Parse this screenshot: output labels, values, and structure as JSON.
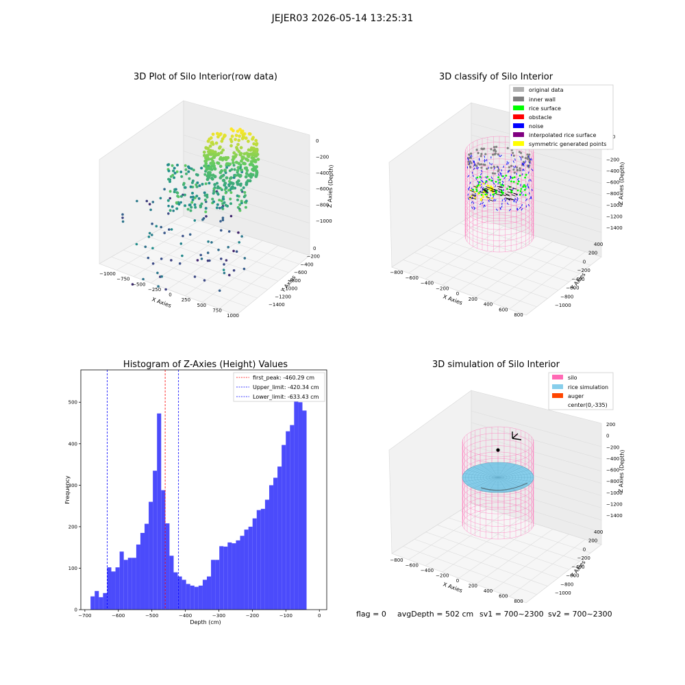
{
  "figure": {
    "suptitle": "JEJER03 2026-05-14 13:25:31",
    "footer": {
      "flag": "flag = 0",
      "avg_depth": "avgDepth = 502 cm",
      "sv1": "sv1 = 700~2300",
      "sv2": "sv2 = 700~2300"
    }
  },
  "colors": {
    "hist_bar": "#4b4bfb",
    "first_peak": "#ff0000",
    "limit_line": "#0000ff",
    "original_data": "#b0b0b0",
    "inner_wall": "#808080",
    "rice_surface": "#00ff00",
    "obstacle": "#ff0000",
    "noise": "#0000ff",
    "interpolated_rice_surface": "#800080",
    "symmetric_generated_points": "#ffff00",
    "silo": "#ff69b4",
    "rice_simulation": "#87ceeb",
    "auger": "#ff4500"
  },
  "chart_data": [
    {
      "type": "scatter",
      "title": "3D Plot of Silo Interior(row data)",
      "xlabel": "X Axies",
      "ylabel": "Y Axies",
      "zlabel": "Z Axies (Depth)",
      "xticks": [
        "−1000",
        "−750",
        "−500",
        "−250",
        "0",
        "250",
        "500",
        "750",
        "1000"
      ],
      "yticks": [
        "0",
        "−200",
        "−400",
        "−600",
        "−800",
        "−1000",
        "−1200",
        "−1400"
      ],
      "zticks": [
        "0",
        "−200",
        "−400",
        "−600",
        "−800",
        "−1000"
      ],
      "xlim": [
        -1000,
        1000
      ],
      "ylim": [
        -1400,
        0
      ],
      "zlim": [
        -1000,
        0
      ]
    },
    {
      "type": "scatter",
      "title": "3D classify of Silo Interior",
      "xlabel": "X Axies",
      "ylabel": "Y Axies",
      "zlabel": "Z Axies (Depth)",
      "xticks": [
        "−800",
        "−600",
        "−400",
        "−200",
        "0",
        "200",
        "400",
        "600",
        "800"
      ],
      "yticks": [
        "400",
        "200",
        "0",
        "−200",
        "−400",
        "−600",
        "−800",
        "−1000"
      ],
      "zticks": [
        "200",
        "0",
        "−200",
        "−400",
        "−600",
        "−800",
        "−1000",
        "−1200",
        "−1400"
      ],
      "legend": [
        "original data",
        "inner wall",
        "rice surface",
        "obstacle",
        "noise",
        "interpolated rice surface",
        "symmetric generated points"
      ],
      "legend_position": "top-right"
    },
    {
      "type": "bar",
      "title": "Histogram of Z-Axies (Height) Values",
      "xlabel": "Depth (cm)",
      "ylabel": "Frequency",
      "xlim": [
        -712,
        22
      ],
      "ylim": [
        0,
        578
      ],
      "xticks": [
        -700,
        -600,
        -500,
        -400,
        -300,
        -200,
        -100,
        0
      ],
      "xtick_labels": [
        "−700",
        "−600",
        "−500",
        "−400",
        "−300",
        "−200",
        "−100",
        "0"
      ],
      "yticks": [
        0,
        100,
        200,
        300,
        400,
        500
      ],
      "yticks_labels": [
        "0",
        "100",
        "200",
        "300",
        "400",
        "500"
      ],
      "bin_start": -683,
      "bin_width": 12.4,
      "values": [
        32,
        45,
        30,
        40,
        102,
        92,
        102,
        140,
        120,
        125,
        125,
        157,
        185,
        207,
        260,
        335,
        473,
        288,
        208,
        130,
        90,
        80,
        72,
        62,
        58,
        55,
        58,
        72,
        80,
        120,
        120,
        153,
        152,
        162,
        160,
        167,
        178,
        193,
        200,
        220,
        240,
        243,
        265,
        300,
        318,
        345,
        397,
        430,
        445,
        545,
        500,
        480
      ],
      "vlines": [
        {
          "label": "first_peak: -460.29 cm",
          "value": -460.29,
          "color": "#ff0000"
        },
        {
          "label": "Upper_limit: -420.34 cm",
          "value": -420.34,
          "color": "#0000ff"
        },
        {
          "label": "Lower_limit: -633.43 cm",
          "value": -633.43,
          "color": "#0000ff"
        }
      ],
      "legend_position": "top-right"
    },
    {
      "type": "scatter",
      "title": "3D simulation of Silo Interior",
      "xlabel": "X Axies",
      "ylabel": "Y Axies",
      "zlabel": "Z Axies (Depth)",
      "xticks": [
        "−800",
        "−600",
        "−400",
        "−200",
        "0",
        "200",
        "400",
        "600",
        "800"
      ],
      "yticks": [
        "400",
        "200",
        "0",
        "−200",
        "−400",
        "−600",
        "−800",
        "−1000"
      ],
      "zticks": [
        "200",
        "0",
        "−200",
        "−400",
        "−600",
        "−800",
        "−1000",
        "−1200",
        "−1400"
      ],
      "legend": [
        "silo",
        "rice simulation",
        "auger",
        "center(0,-335)"
      ],
      "legend_position": "top-right"
    }
  ]
}
